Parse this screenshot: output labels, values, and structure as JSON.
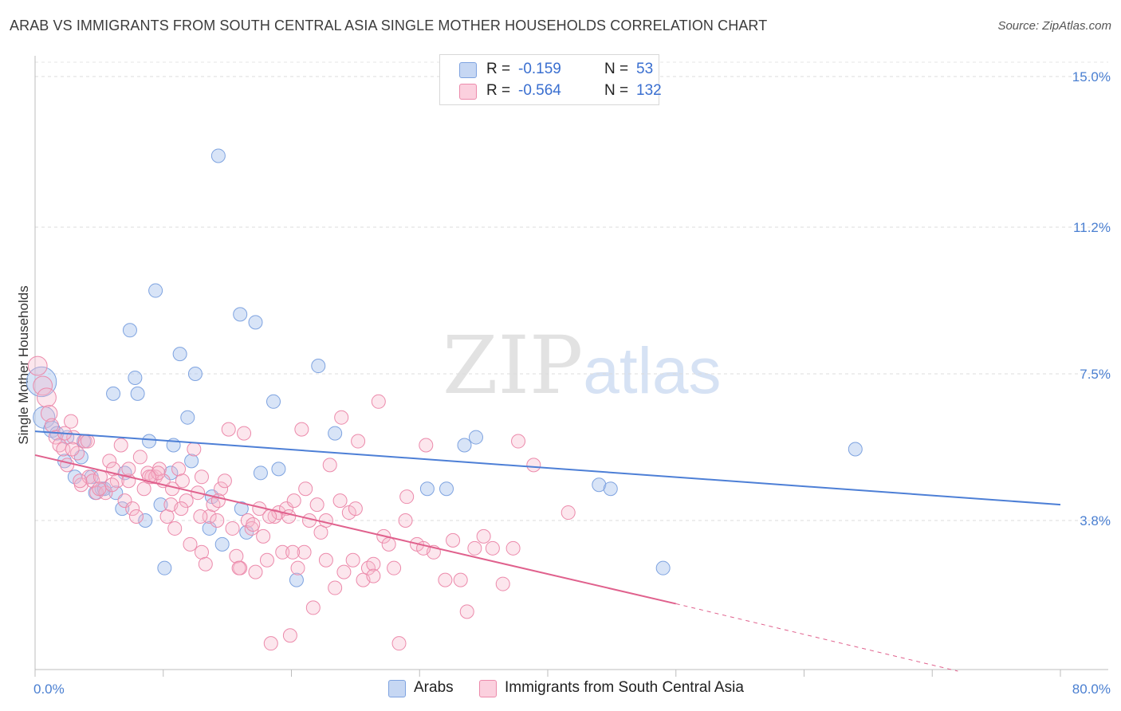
{
  "title": "ARAB VS IMMIGRANTS FROM SOUTH CENTRAL ASIA SINGLE MOTHER HOUSEHOLDS CORRELATION CHART",
  "source": "Source: ZipAtlas.com",
  "watermark": {
    "zip": "ZIP",
    "atlas": "atlas"
  },
  "legend": {
    "rows": [
      {
        "r_label": "R =",
        "r_value": "-0.159",
        "n_label": "N =",
        "n_value": "53",
        "color": "#a9c4ee"
      },
      {
        "r_label": "R =",
        "r_value": "-0.564",
        "n_label": "N =",
        "n_value": "132",
        "color": "#f7b6cb"
      }
    ]
  },
  "bottom_legend": [
    {
      "label": "Arabs",
      "color": "#a9c4ee"
    },
    {
      "label": "Immigrants from South Central Asia",
      "color": "#f7b6cb"
    }
  ],
  "chart_data": {
    "type": "scatter",
    "ylabel": "Single Mother Households",
    "xlim": [
      0,
      80
    ],
    "ylim": [
      0,
      15.5
    ],
    "x_tick_labels": [
      "0.0%",
      "80.0%"
    ],
    "y_ticks": [
      3.8,
      7.5,
      11.2,
      15.0
    ],
    "y_tick_labels": [
      "3.8%",
      "7.5%",
      "11.2%",
      "15.0%"
    ],
    "grid": true,
    "colors": {
      "arabs": "#4d7fd6",
      "arabs_fill": "#a9c4ee",
      "immigrants": "#e0618d",
      "immigrants_fill": "#f7b6cb"
    },
    "series": [
      {
        "name": "Arabs",
        "trend": {
          "x": [
            0,
            80
          ],
          "y": [
            6.05,
            4.2
          ],
          "dashed_from": null
        },
        "points": [
          [
            0.5,
            7.3,
            2.2
          ],
          [
            0.7,
            6.4,
            1.6
          ],
          [
            1.3,
            6.1,
            1.2
          ],
          [
            1.7,
            6.0,
            1.0
          ],
          [
            2.5,
            5.9,
            1.0
          ],
          [
            2.3,
            5.3,
            1.0
          ],
          [
            3.1,
            4.9,
            1.0
          ],
          [
            3.6,
            5.4,
            1.0
          ],
          [
            3.8,
            5.8,
            1.0
          ],
          [
            4.4,
            4.9,
            1.0
          ],
          [
            4.7,
            4.5,
            1.0
          ],
          [
            5.2,
            4.6,
            1.0
          ],
          [
            5.4,
            4.6,
            1.0
          ],
          [
            6.3,
            4.5,
            1.0
          ],
          [
            6.8,
            4.1,
            1.0
          ],
          [
            7.0,
            5.0,
            1.0
          ],
          [
            7.4,
            8.6,
            1.0
          ],
          [
            7.8,
            7.4,
            1.0
          ],
          [
            6.1,
            7.0,
            1.0
          ],
          [
            8.0,
            7.0,
            1.0
          ],
          [
            8.6,
            3.8,
            1.0
          ],
          [
            8.9,
            5.8,
            1.0
          ],
          [
            9.4,
            9.6,
            1.0
          ],
          [
            9.8,
            4.2,
            1.0
          ],
          [
            10.1,
            2.6,
            1.0
          ],
          [
            10.6,
            5.0,
            1.0
          ],
          [
            10.8,
            5.7,
            1.0
          ],
          [
            11.3,
            8.0,
            1.0
          ],
          [
            11.9,
            6.4,
            1.0
          ],
          [
            12.2,
            5.3,
            1.0
          ],
          [
            12.5,
            7.5,
            1.0
          ],
          [
            13.6,
            3.6,
            1.0
          ],
          [
            13.8,
            4.4,
            1.0
          ],
          [
            14.3,
            13.0,
            1.0
          ],
          [
            14.6,
            3.2,
            1.0
          ],
          [
            16.1,
            4.1,
            1.0
          ],
          [
            16.5,
            3.5,
            1.0
          ],
          [
            16.0,
            9.0,
            1.0
          ],
          [
            17.2,
            8.8,
            1.0
          ],
          [
            17.6,
            5.0,
            1.0
          ],
          [
            18.6,
            6.8,
            1.0
          ],
          [
            19.0,
            5.1,
            1.0
          ],
          [
            20.4,
            2.3,
            1.0
          ],
          [
            22.1,
            7.7,
            1.0
          ],
          [
            23.4,
            6.0,
            1.0
          ],
          [
            30.6,
            4.6,
            1.0
          ],
          [
            32.1,
            4.6,
            1.0
          ],
          [
            33.5,
            5.7,
            1.0
          ],
          [
            34.4,
            5.9,
            1.0
          ],
          [
            44.0,
            4.7,
            1.0
          ],
          [
            44.9,
            4.6,
            1.0
          ],
          [
            49.0,
            2.6,
            1.0
          ],
          [
            64.0,
            5.6,
            1.0
          ]
        ]
      },
      {
        "name": "Immigrants from South Central Asia",
        "trend": {
          "x": [
            0,
            50
          ],
          "y": [
            5.45,
            1.7
          ],
          "dashed_to": [
            72,
            0.0
          ]
        },
        "points": [
          [
            0.2,
            7.7,
            1.4
          ],
          [
            0.6,
            7.2,
            1.4
          ],
          [
            0.9,
            6.9,
            1.4
          ],
          [
            1.1,
            6.5,
            1.2
          ],
          [
            1.3,
            6.2,
            1.0
          ],
          [
            1.6,
            5.9,
            1.0
          ],
          [
            1.9,
            5.7,
            1.0
          ],
          [
            2.2,
            5.6,
            1.0
          ],
          [
            2.5,
            5.2,
            1.0
          ],
          [
            2.8,
            6.3,
            1.0
          ],
          [
            3.0,
            5.9,
            1.0
          ],
          [
            3.3,
            5.5,
            1.0
          ],
          [
            3.6,
            4.7,
            1.0
          ],
          [
            3.9,
            5.8,
            1.0
          ],
          [
            4.2,
            4.9,
            1.0
          ],
          [
            4.5,
            4.8,
            1.0
          ],
          [
            4.8,
            4.5,
            1.0
          ],
          [
            5.1,
            4.9,
            1.0
          ],
          [
            5.5,
            4.5,
            1.0
          ],
          [
            5.8,
            5.3,
            1.0
          ],
          [
            6.1,
            5.1,
            1.0
          ],
          [
            6.4,
            4.8,
            1.0
          ],
          [
            6.7,
            5.7,
            1.0
          ],
          [
            7.0,
            4.3,
            1.0
          ],
          [
            7.3,
            4.8,
            1.0
          ],
          [
            7.6,
            4.1,
            1.0
          ],
          [
            7.9,
            3.9,
            1.0
          ],
          [
            8.2,
            5.4,
            1.0
          ],
          [
            8.5,
            4.6,
            1.0
          ],
          [
            8.8,
            5.0,
            1.0
          ],
          [
            9.1,
            4.9,
            1.0
          ],
          [
            9.4,
            4.9,
            1.0
          ],
          [
            9.7,
            5.1,
            1.0
          ],
          [
            10.0,
            4.8,
            1.0
          ],
          [
            10.3,
            3.9,
            1.0
          ],
          [
            10.6,
            4.2,
            1.0
          ],
          [
            10.9,
            3.6,
            1.0
          ],
          [
            11.2,
            5.1,
            1.0
          ],
          [
            11.5,
            4.8,
            1.0
          ],
          [
            11.8,
            4.3,
            1.0
          ],
          [
            12.1,
            3.2,
            1.0
          ],
          [
            12.4,
            5.6,
            1.0
          ],
          [
            12.7,
            4.5,
            1.0
          ],
          [
            13.0,
            3.0,
            1.0
          ],
          [
            13.3,
            2.7,
            1.0
          ],
          [
            13.6,
            3.9,
            1.0
          ],
          [
            13.9,
            4.2,
            1.0
          ],
          [
            14.2,
            3.8,
            1.0
          ],
          [
            14.5,
            4.6,
            1.0
          ],
          [
            14.8,
            4.8,
            1.0
          ],
          [
            15.1,
            6.1,
            1.0
          ],
          [
            15.4,
            3.6,
            1.0
          ],
          [
            15.7,
            2.9,
            1.0
          ],
          [
            16.0,
            2.6,
            1.0
          ],
          [
            16.3,
            6.0,
            1.0
          ],
          [
            16.6,
            3.8,
            1.0
          ],
          [
            16.9,
            3.6,
            1.0
          ],
          [
            17.2,
            2.5,
            1.0
          ],
          [
            17.5,
            4.1,
            1.0
          ],
          [
            17.8,
            3.4,
            1.0
          ],
          [
            18.1,
            2.8,
            1.0
          ],
          [
            18.4,
            0.7,
            1.0
          ],
          [
            18.7,
            3.9,
            1.0
          ],
          [
            19.0,
            4.0,
            1.0
          ],
          [
            19.3,
            3.0,
            1.0
          ],
          [
            19.6,
            4.1,
            1.0
          ],
          [
            19.9,
            0.9,
            1.0
          ],
          [
            20.2,
            4.3,
            1.0
          ],
          [
            20.5,
            2.6,
            1.0
          ],
          [
            20.8,
            6.1,
            1.0
          ],
          [
            21.1,
            4.6,
            1.0
          ],
          [
            21.4,
            3.8,
            1.0
          ],
          [
            21.7,
            1.6,
            1.0
          ],
          [
            22.0,
            4.2,
            1.0
          ],
          [
            22.3,
            3.5,
            1.0
          ],
          [
            22.7,
            2.8,
            1.0
          ],
          [
            23.0,
            5.2,
            1.0
          ],
          [
            23.4,
            2.1,
            1.0
          ],
          [
            23.8,
            4.3,
            1.0
          ],
          [
            24.1,
            2.5,
            1.0
          ],
          [
            24.5,
            4.0,
            1.0
          ],
          [
            24.8,
            2.8,
            1.0
          ],
          [
            25.2,
            5.8,
            1.0
          ],
          [
            25.6,
            2.3,
            1.0
          ],
          [
            26.0,
            2.6,
            1.0
          ],
          [
            26.4,
            2.7,
            1.0
          ],
          [
            26.8,
            6.8,
            1.0
          ],
          [
            27.2,
            3.4,
            1.0
          ],
          [
            27.6,
            3.2,
            1.0
          ],
          [
            28.0,
            2.6,
            1.0
          ],
          [
            28.4,
            0.7,
            1.0
          ],
          [
            29.0,
            4.4,
            1.0
          ],
          [
            29.8,
            3.2,
            1.0
          ],
          [
            30.5,
            5.7,
            1.0
          ],
          [
            31.1,
            3.0,
            1.0
          ],
          [
            32.0,
            2.3,
            1.0
          ],
          [
            32.6,
            3.3,
            1.0
          ],
          [
            33.2,
            2.3,
            1.0
          ],
          [
            33.7,
            1.5,
            1.0
          ],
          [
            34.3,
            3.1,
            1.0
          ],
          [
            35.0,
            3.4,
            1.0
          ],
          [
            35.7,
            3.1,
            1.0
          ],
          [
            36.5,
            2.2,
            1.0
          ],
          [
            37.3,
            3.1,
            1.0
          ],
          [
            37.7,
            5.8,
            1.0
          ],
          [
            38.9,
            5.2,
            1.0
          ],
          [
            41.6,
            4.0,
            1.0
          ],
          [
            19.8,
            3.9,
            1.0
          ],
          [
            23.9,
            6.4,
            1.0
          ],
          [
            21.0,
            3.0,
            1.0
          ],
          [
            15.9,
            2.6,
            1.0
          ],
          [
            14.3,
            4.3,
            1.0
          ],
          [
            12.9,
            3.9,
            1.0
          ],
          [
            10.7,
            4.6,
            1.0
          ],
          [
            9.6,
            5.0,
            1.0
          ],
          [
            8.9,
            4.9,
            1.0
          ],
          [
            7.3,
            5.1,
            1.0
          ],
          [
            6.0,
            4.7,
            1.0
          ],
          [
            5.0,
            4.6,
            1.0
          ],
          [
            4.1,
            5.8,
            1.0
          ],
          [
            3.5,
            4.8,
            1.0
          ],
          [
            2.9,
            5.6,
            1.0
          ],
          [
            2.3,
            6.0,
            1.0
          ],
          [
            17.0,
            3.7,
            1.0
          ],
          [
            18.3,
            3.9,
            1.0
          ],
          [
            20.1,
            3.0,
            1.0
          ],
          [
            22.7,
            3.8,
            1.0
          ],
          [
            25.0,
            4.1,
            1.0
          ],
          [
            26.4,
            2.4,
            1.0
          ],
          [
            28.9,
            3.8,
            1.0
          ],
          [
            30.3,
            3.1,
            1.0
          ],
          [
            11.4,
            4.1,
            1.0
          ],
          [
            13.0,
            4.9,
            1.0
          ]
        ]
      }
    ]
  }
}
